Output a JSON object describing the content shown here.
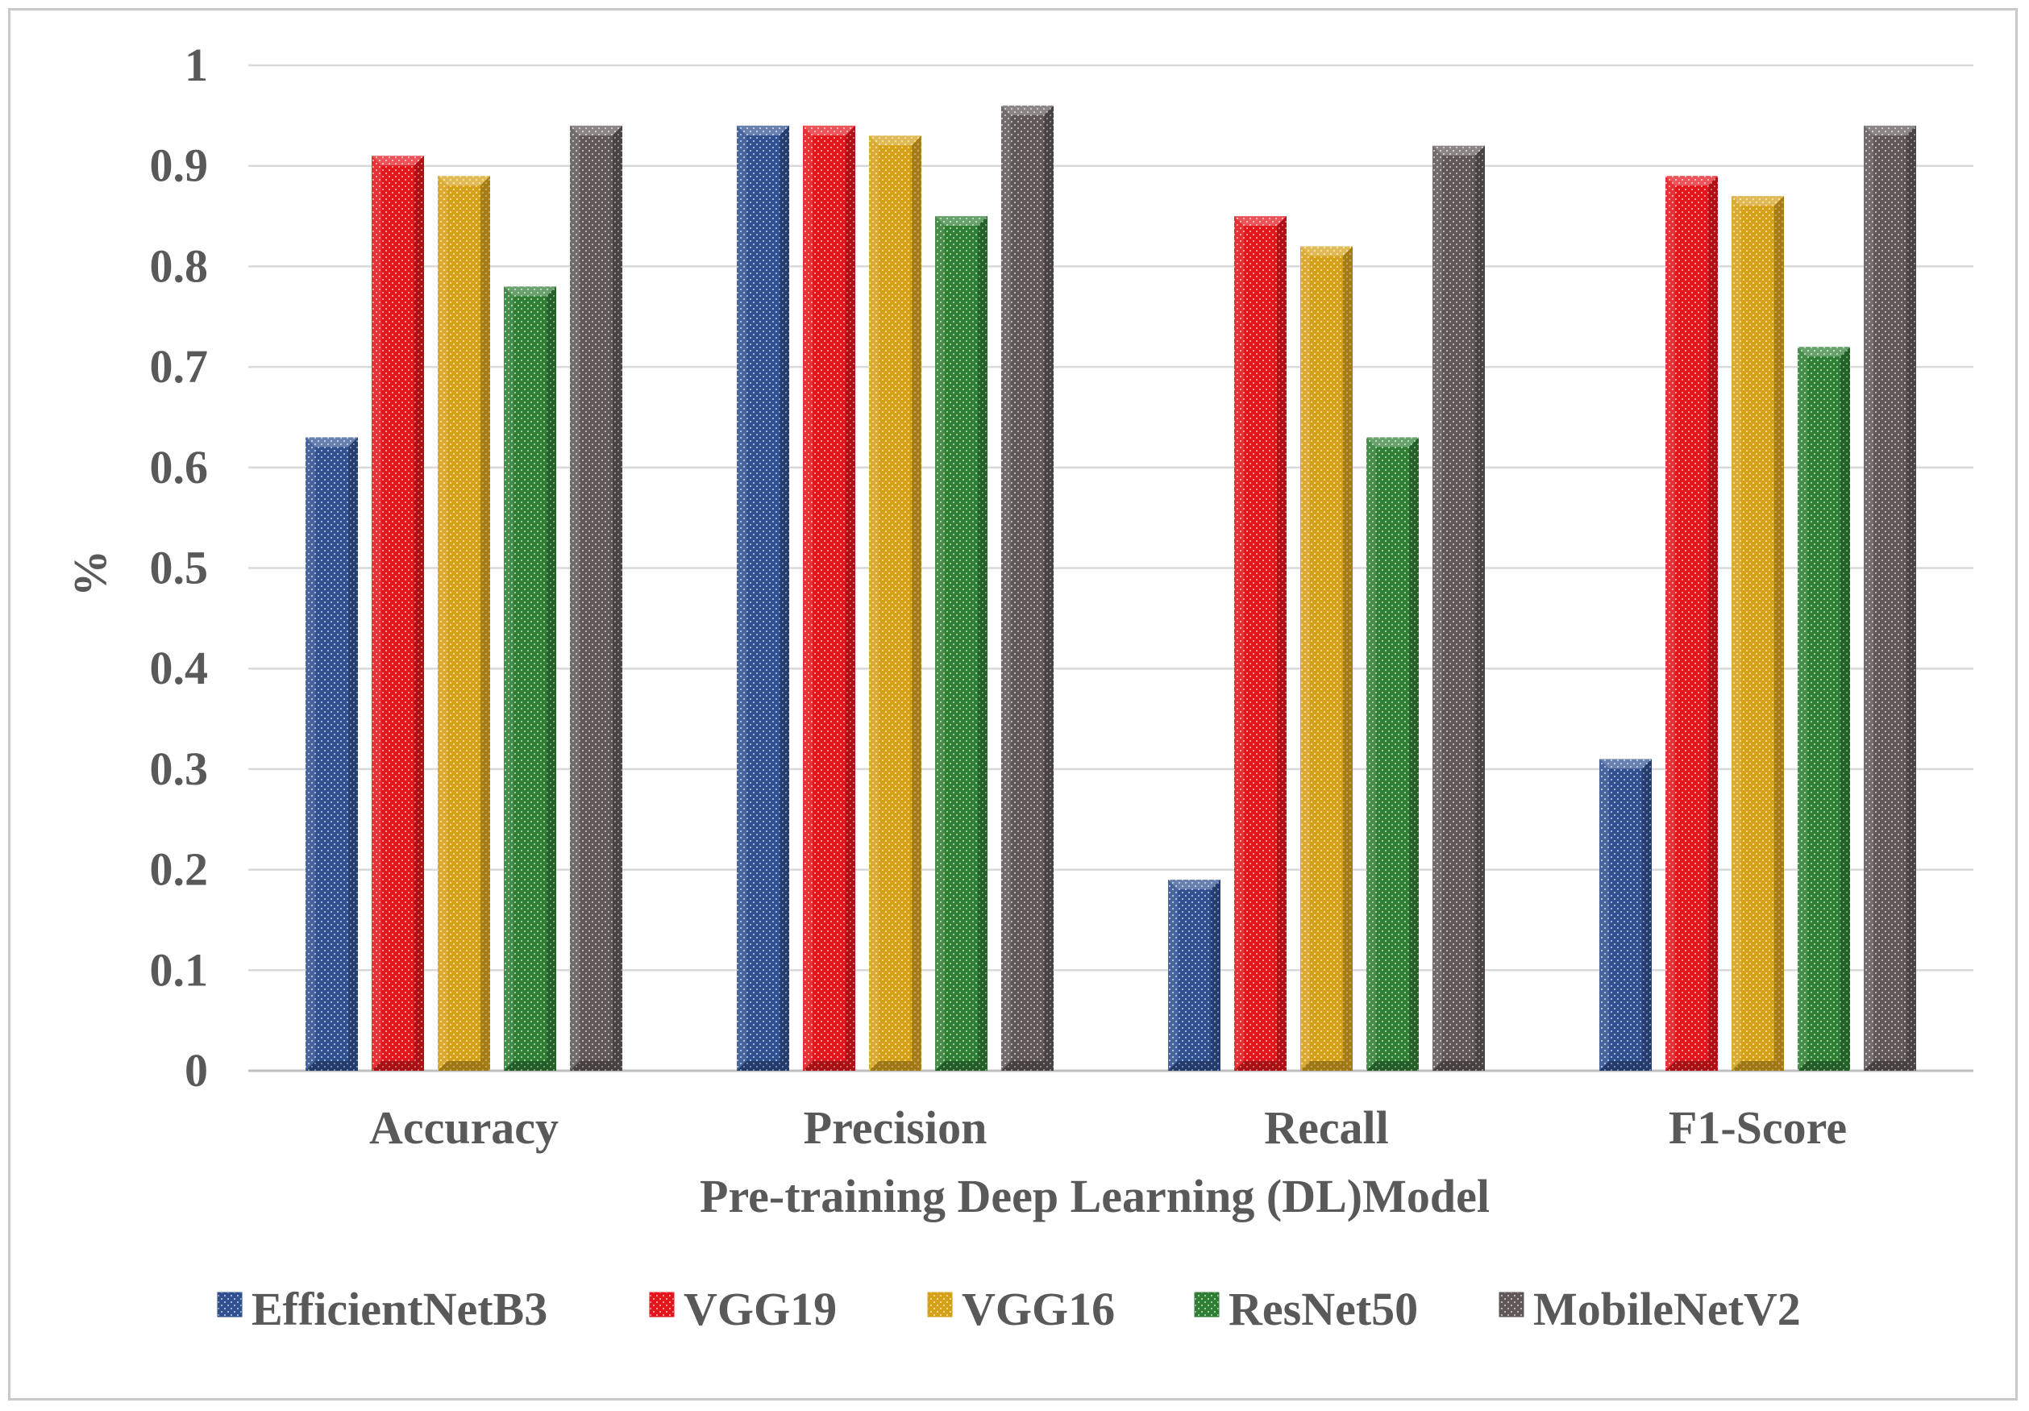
{
  "chart_data": {
    "type": "bar",
    "title": "",
    "xlabel": "Pre-training Deep Learning (DL)Model",
    "ylabel": "%",
    "ylim": [
      0,
      1
    ],
    "yticks": [
      0,
      0.1,
      0.2,
      0.3,
      0.4,
      0.5,
      0.6,
      0.7,
      0.8,
      0.9,
      1
    ],
    "ytick_labels": [
      "0",
      "0.1",
      "0.2",
      "0.3",
      "0.4",
      "0.5",
      "0.6",
      "0.7",
      "0.8",
      "0.9",
      "1"
    ],
    "grid": true,
    "legend_position": "bottom",
    "categories": [
      "Accuracy",
      "Precision",
      "Recall",
      "F1-Score"
    ],
    "series": [
      {
        "name": "EfficientNetB3",
        "color": "#2f4f8f",
        "values": [
          0.63,
          0.94,
          0.19,
          0.31
        ]
      },
      {
        "name": "VGG19",
        "color": "#e3141b",
        "values": [
          0.91,
          0.94,
          0.85,
          0.89
        ]
      },
      {
        "name": "VGG16",
        "color": "#d4a017",
        "values": [
          0.89,
          0.93,
          0.82,
          0.87
        ]
      },
      {
        "name": "ResNet50",
        "color": "#2e7d32",
        "values": [
          0.78,
          0.85,
          0.63,
          0.72
        ]
      },
      {
        "name": "MobileNetV2",
        "color": "#5f5757",
        "values": [
          0.94,
          0.96,
          0.92,
          0.94
        ]
      }
    ]
  }
}
